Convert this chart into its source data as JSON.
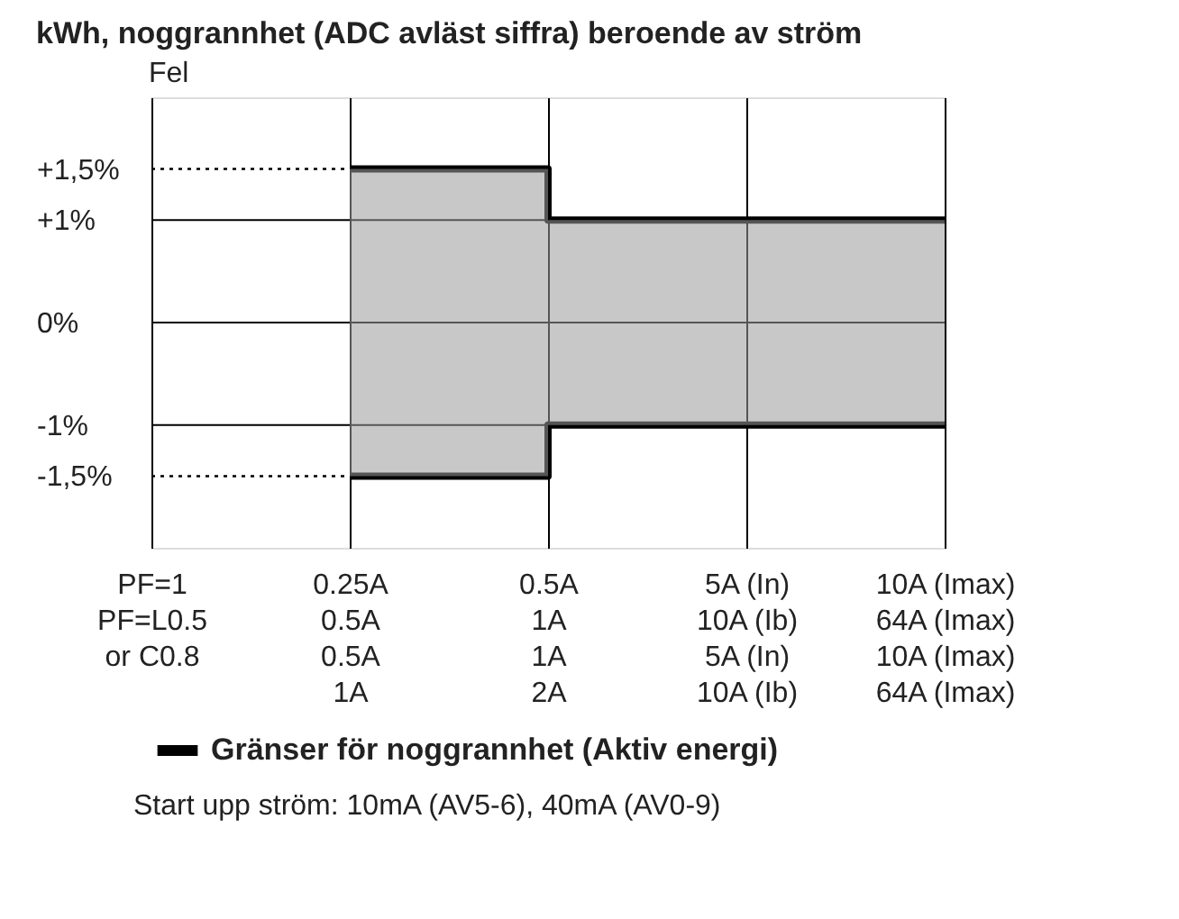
{
  "chart_data": {
    "type": "step",
    "title": "kWh, noggrannhet (ADC avläst siffra) beroende av ström",
    "ylabel": "Fel",
    "categories": [
      "PF=1\n\nPF=L0.5\nor C0.8",
      "0.25A\n0.5A\n0.5A\n1A",
      "0.5A\n1A\n1A\n2A",
      "5A (In)\n10A (Ib)\n5A (In)\n10A (Ib)",
      "10A (Imax)\n64A (Imax)\n10A (Imax)\n64A (Imax)"
    ],
    "series": [
      {
        "name": "Gränser för noggrannhet (Aktiv energi)",
        "color": "#000000",
        "values": [
          null,
          1.5,
          1,
          1,
          1
        ]
      },
      {
        "color": "#000000",
        "values": [
          null,
          -1.5,
          -1,
          -1,
          -1
        ]
      }
    ],
    "ylim": [
      -2.2,
      2.2
    ],
    "yticks": [
      {
        "value": 1.5,
        "label": "+1,5%"
      },
      {
        "value": 1,
        "label": "+1%"
      },
      {
        "value": 0,
        "label": "0%"
      },
      {
        "value": -1,
        "label": "-1%"
      },
      {
        "value": -1.5,
        "label": "-1,5%"
      }
    ],
    "ref_lines": [
      {
        "axis": "y",
        "value": 1.5,
        "line_style": "dotted"
      },
      {
        "axis": "y",
        "value": -1.5,
        "line_style": "dotted"
      }
    ],
    "grid": true,
    "legend": "bottom",
    "annotations": [
      "Start upp ström: 10mA (AV5-6), 40mA (AV0-9)"
    ]
  }
}
